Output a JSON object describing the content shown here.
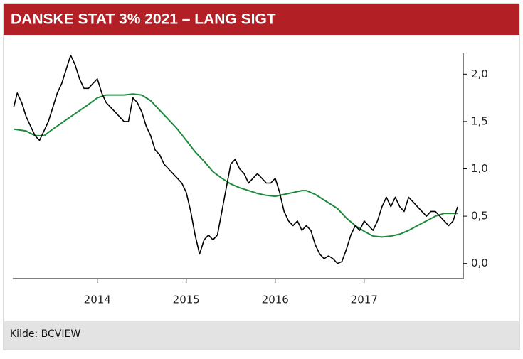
{
  "chart_data": {
    "type": "line",
    "title": "DANSKE STAT 3% 2021 – LANG SIGT",
    "source": "Kilde: BCVIEW",
    "xlim": [
      2013.05,
      2018.09
    ],
    "xticks": [
      2014,
      2015,
      2016,
      2017
    ],
    "ylim": [
      -0.16,
      2.22
    ],
    "yticks": [
      {
        "value": 0,
        "label": "0,0"
      },
      {
        "value": 0.5,
        "label": "0,5"
      },
      {
        "value": 1,
        "label": "1,0"
      },
      {
        "value": 1.5,
        "label": "1,5"
      },
      {
        "value": 2,
        "label": "2,0"
      }
    ],
    "series": [
      {
        "color": "#000000",
        "x": [
          2013.06,
          2013.1,
          2013.15,
          2013.2,
          2013.25,
          2013.3,
          2013.35,
          2013.4,
          2013.45,
          2013.5,
          2013.55,
          2013.6,
          2013.65,
          2013.7,
          2013.75,
          2013.8,
          2013.85,
          2013.9,
          2013.95,
          2014.0,
          2014.05,
          2014.1,
          2014.15,
          2014.2,
          2014.25,
          2014.3,
          2014.35,
          2014.4,
          2014.45,
          2014.5,
          2014.55,
          2014.6,
          2014.65,
          2014.7,
          2014.75,
          2014.8,
          2014.85,
          2014.9,
          2014.95,
          2015.0,
          2015.05,
          2015.1,
          2015.15,
          2015.2,
          2015.25,
          2015.3,
          2015.35,
          2015.4,
          2015.45,
          2015.5,
          2015.55,
          2015.6,
          2015.65,
          2015.7,
          2015.75,
          2015.8,
          2015.85,
          2015.9,
          2015.95,
          2016.0,
          2016.05,
          2016.1,
          2016.15,
          2016.2,
          2016.25,
          2016.3,
          2016.35,
          2016.4,
          2016.45,
          2016.5,
          2016.55,
          2016.6,
          2016.65,
          2016.7,
          2016.75,
          2016.8,
          2016.85,
          2016.9,
          2016.95,
          2017.0,
          2017.05,
          2017.1,
          2017.15,
          2017.2,
          2017.25,
          2017.3,
          2017.35,
          2017.4,
          2017.45,
          2017.5,
          2017.55,
          2017.6,
          2017.65,
          2017.7,
          2017.75,
          2017.8,
          2017.85,
          2017.9,
          2017.95,
          2018.0,
          2018.05
        ],
        "values": [
          1.65,
          1.8,
          1.7,
          1.55,
          1.45,
          1.35,
          1.3,
          1.4,
          1.5,
          1.65,
          1.8,
          1.9,
          2.05,
          2.2,
          2.1,
          1.95,
          1.85,
          1.85,
          1.9,
          1.95,
          1.8,
          1.7,
          1.65,
          1.6,
          1.55,
          1.5,
          1.5,
          1.75,
          1.7,
          1.6,
          1.45,
          1.35,
          1.2,
          1.15,
          1.05,
          1.0,
          0.95,
          0.9,
          0.85,
          0.75,
          0.55,
          0.3,
          0.1,
          0.25,
          0.3,
          0.25,
          0.3,
          0.55,
          0.8,
          1.05,
          1.1,
          1.0,
          0.95,
          0.85,
          0.9,
          0.95,
          0.9,
          0.85,
          0.85,
          0.9,
          0.75,
          0.55,
          0.45,
          0.4,
          0.45,
          0.35,
          0.4,
          0.35,
          0.2,
          0.1,
          0.05,
          0.08,
          0.05,
          0.0,
          0.02,
          0.15,
          0.3,
          0.4,
          0.35,
          0.45,
          0.4,
          0.35,
          0.45,
          0.6,
          0.7,
          0.6,
          0.7,
          0.6,
          0.55,
          0.7,
          0.65,
          0.6,
          0.55,
          0.5,
          0.55,
          0.55,
          0.5,
          0.45,
          0.4,
          0.45,
          0.6
        ]
      },
      {
        "color": "#1e8a3c",
        "x": [
          2013.06,
          2013.2,
          2013.3,
          2013.4,
          2013.5,
          2013.7,
          2013.9,
          2014.0,
          2014.1,
          2014.3,
          2014.4,
          2014.5,
          2014.6,
          2014.7,
          2014.8,
          2014.9,
          2015.0,
          2015.1,
          2015.2,
          2015.3,
          2015.4,
          2015.5,
          2015.6,
          2015.7,
          2015.8,
          2015.9,
          2016.0,
          2016.1,
          2016.2,
          2016.3,
          2016.35,
          2016.45,
          2016.55,
          2016.7,
          2016.8,
          2016.9,
          2017.0,
          2017.1,
          2017.2,
          2017.3,
          2017.4,
          2017.5,
          2017.6,
          2017.7,
          2017.8,
          2017.9,
          2018.05
        ],
        "values": [
          1.42,
          1.4,
          1.35,
          1.35,
          1.42,
          1.55,
          1.68,
          1.75,
          1.78,
          1.78,
          1.79,
          1.78,
          1.72,
          1.62,
          1.52,
          1.42,
          1.3,
          1.18,
          1.08,
          0.97,
          0.9,
          0.84,
          0.8,
          0.77,
          0.74,
          0.72,
          0.71,
          0.73,
          0.75,
          0.77,
          0.77,
          0.73,
          0.67,
          0.58,
          0.48,
          0.4,
          0.34,
          0.29,
          0.28,
          0.29,
          0.31,
          0.35,
          0.4,
          0.45,
          0.5,
          0.53,
          0.53
        ]
      }
    ]
  }
}
